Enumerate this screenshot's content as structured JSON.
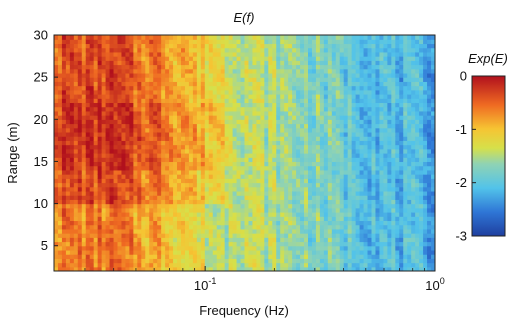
{
  "chart_data": {
    "type": "heatmap",
    "title": "E(f)",
    "xlabel": "Frequency (Hz)",
    "ylabel": "Range (m)",
    "x_scale": "log",
    "xlim": [
      0.022,
      1.0
    ],
    "ylim": [
      2,
      30
    ],
    "x_ticks": [
      {
        "value": 0.1,
        "base": "10",
        "exp": "-1"
      },
      {
        "value": 1.0,
        "base": "10",
        "exp": "0"
      }
    ],
    "y_ticks": [
      5,
      10,
      15,
      20,
      25,
      30
    ],
    "colorbar": {
      "label": "Exp(E)",
      "range": [
        -3,
        0
      ],
      "ticks": [
        "0",
        "-1",
        "-2",
        "-3"
      ],
      "tick_values": [
        0,
        -1,
        -2,
        -3
      ],
      "colormap": "jet"
    },
    "z_profile": {
      "description_units": "Exp(E)",
      "frequency_hz": [
        0.022,
        0.03,
        0.04,
        0.05,
        0.06,
        0.08,
        0.1,
        0.15,
        0.2,
        0.3,
        0.4,
        0.5,
        0.7,
        1.0
      ],
      "typical_value": [
        -0.4,
        -0.4,
        -0.35,
        -0.55,
        -0.6,
        -0.85,
        -1.1,
        -1.4,
        -1.55,
        -1.75,
        -1.9,
        -2.0,
        -2.15,
        -2.25
      ]
    }
  }
}
